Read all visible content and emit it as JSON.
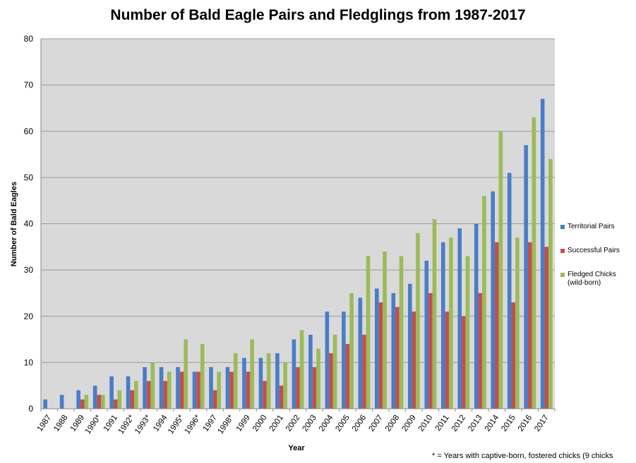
{
  "chart_data": {
    "type": "bar",
    "title": "Number of Bald Eagle Pairs and Fledglings from 1987-2017",
    "xlabel": "Year",
    "ylabel": "Number of Bald Eagles",
    "ylim": [
      0,
      80
    ],
    "yticks": [
      0,
      10,
      20,
      30,
      40,
      50,
      60,
      70,
      80
    ],
    "grid": true,
    "legend_position": "right",
    "categories": [
      "1987",
      "1988",
      "1989",
      "1990*",
      "1991",
      "1992*",
      "1993*",
      "1994",
      "1995*",
      "1996*",
      "1997",
      "1998*",
      "1999",
      "2000",
      "2001",
      "2002",
      "2003",
      "2004",
      "2005",
      "2006",
      "2007",
      "2008",
      "2009",
      "2010",
      "2011",
      "2012",
      "2013",
      "2014",
      "2015",
      "2016",
      "2017"
    ],
    "series": [
      {
        "name": "Territorial Pairs",
        "color": "#4a7dc8",
        "values": [
          2,
          3,
          4,
          5,
          7,
          7,
          9,
          9,
          9,
          8,
          9,
          9,
          11,
          11,
          12,
          15,
          16,
          21,
          21,
          24,
          26,
          25,
          27,
          32,
          36,
          39,
          40,
          47,
          51,
          57,
          67
        ]
      },
      {
        "name": "Successful Pairs",
        "color": "#c0504d",
        "values": [
          0,
          0,
          2,
          3,
          2,
          4,
          6,
          6,
          8,
          8,
          4,
          8,
          8,
          6,
          5,
          9,
          9,
          12,
          14,
          16,
          23,
          22,
          21,
          25,
          21,
          20,
          25,
          36,
          23,
          36,
          35
        ]
      },
      {
        "name": "Fledged Chicks (wild-born)",
        "color": "#9bbb59",
        "values": [
          0,
          0,
          3,
          3,
          4,
          6,
          10,
          8,
          15,
          14,
          8,
          12,
          15,
          12,
          10,
          17,
          13,
          16,
          25,
          33,
          34,
          33,
          38,
          41,
          37,
          33,
          46,
          60,
          37,
          63,
          54
        ]
      }
    ],
    "annotation": "* = Years with captive-born, fostered chicks (9 chicks"
  },
  "colors": {
    "plot_background": "#d9d9d9",
    "gridline": "#9a9a9a"
  }
}
